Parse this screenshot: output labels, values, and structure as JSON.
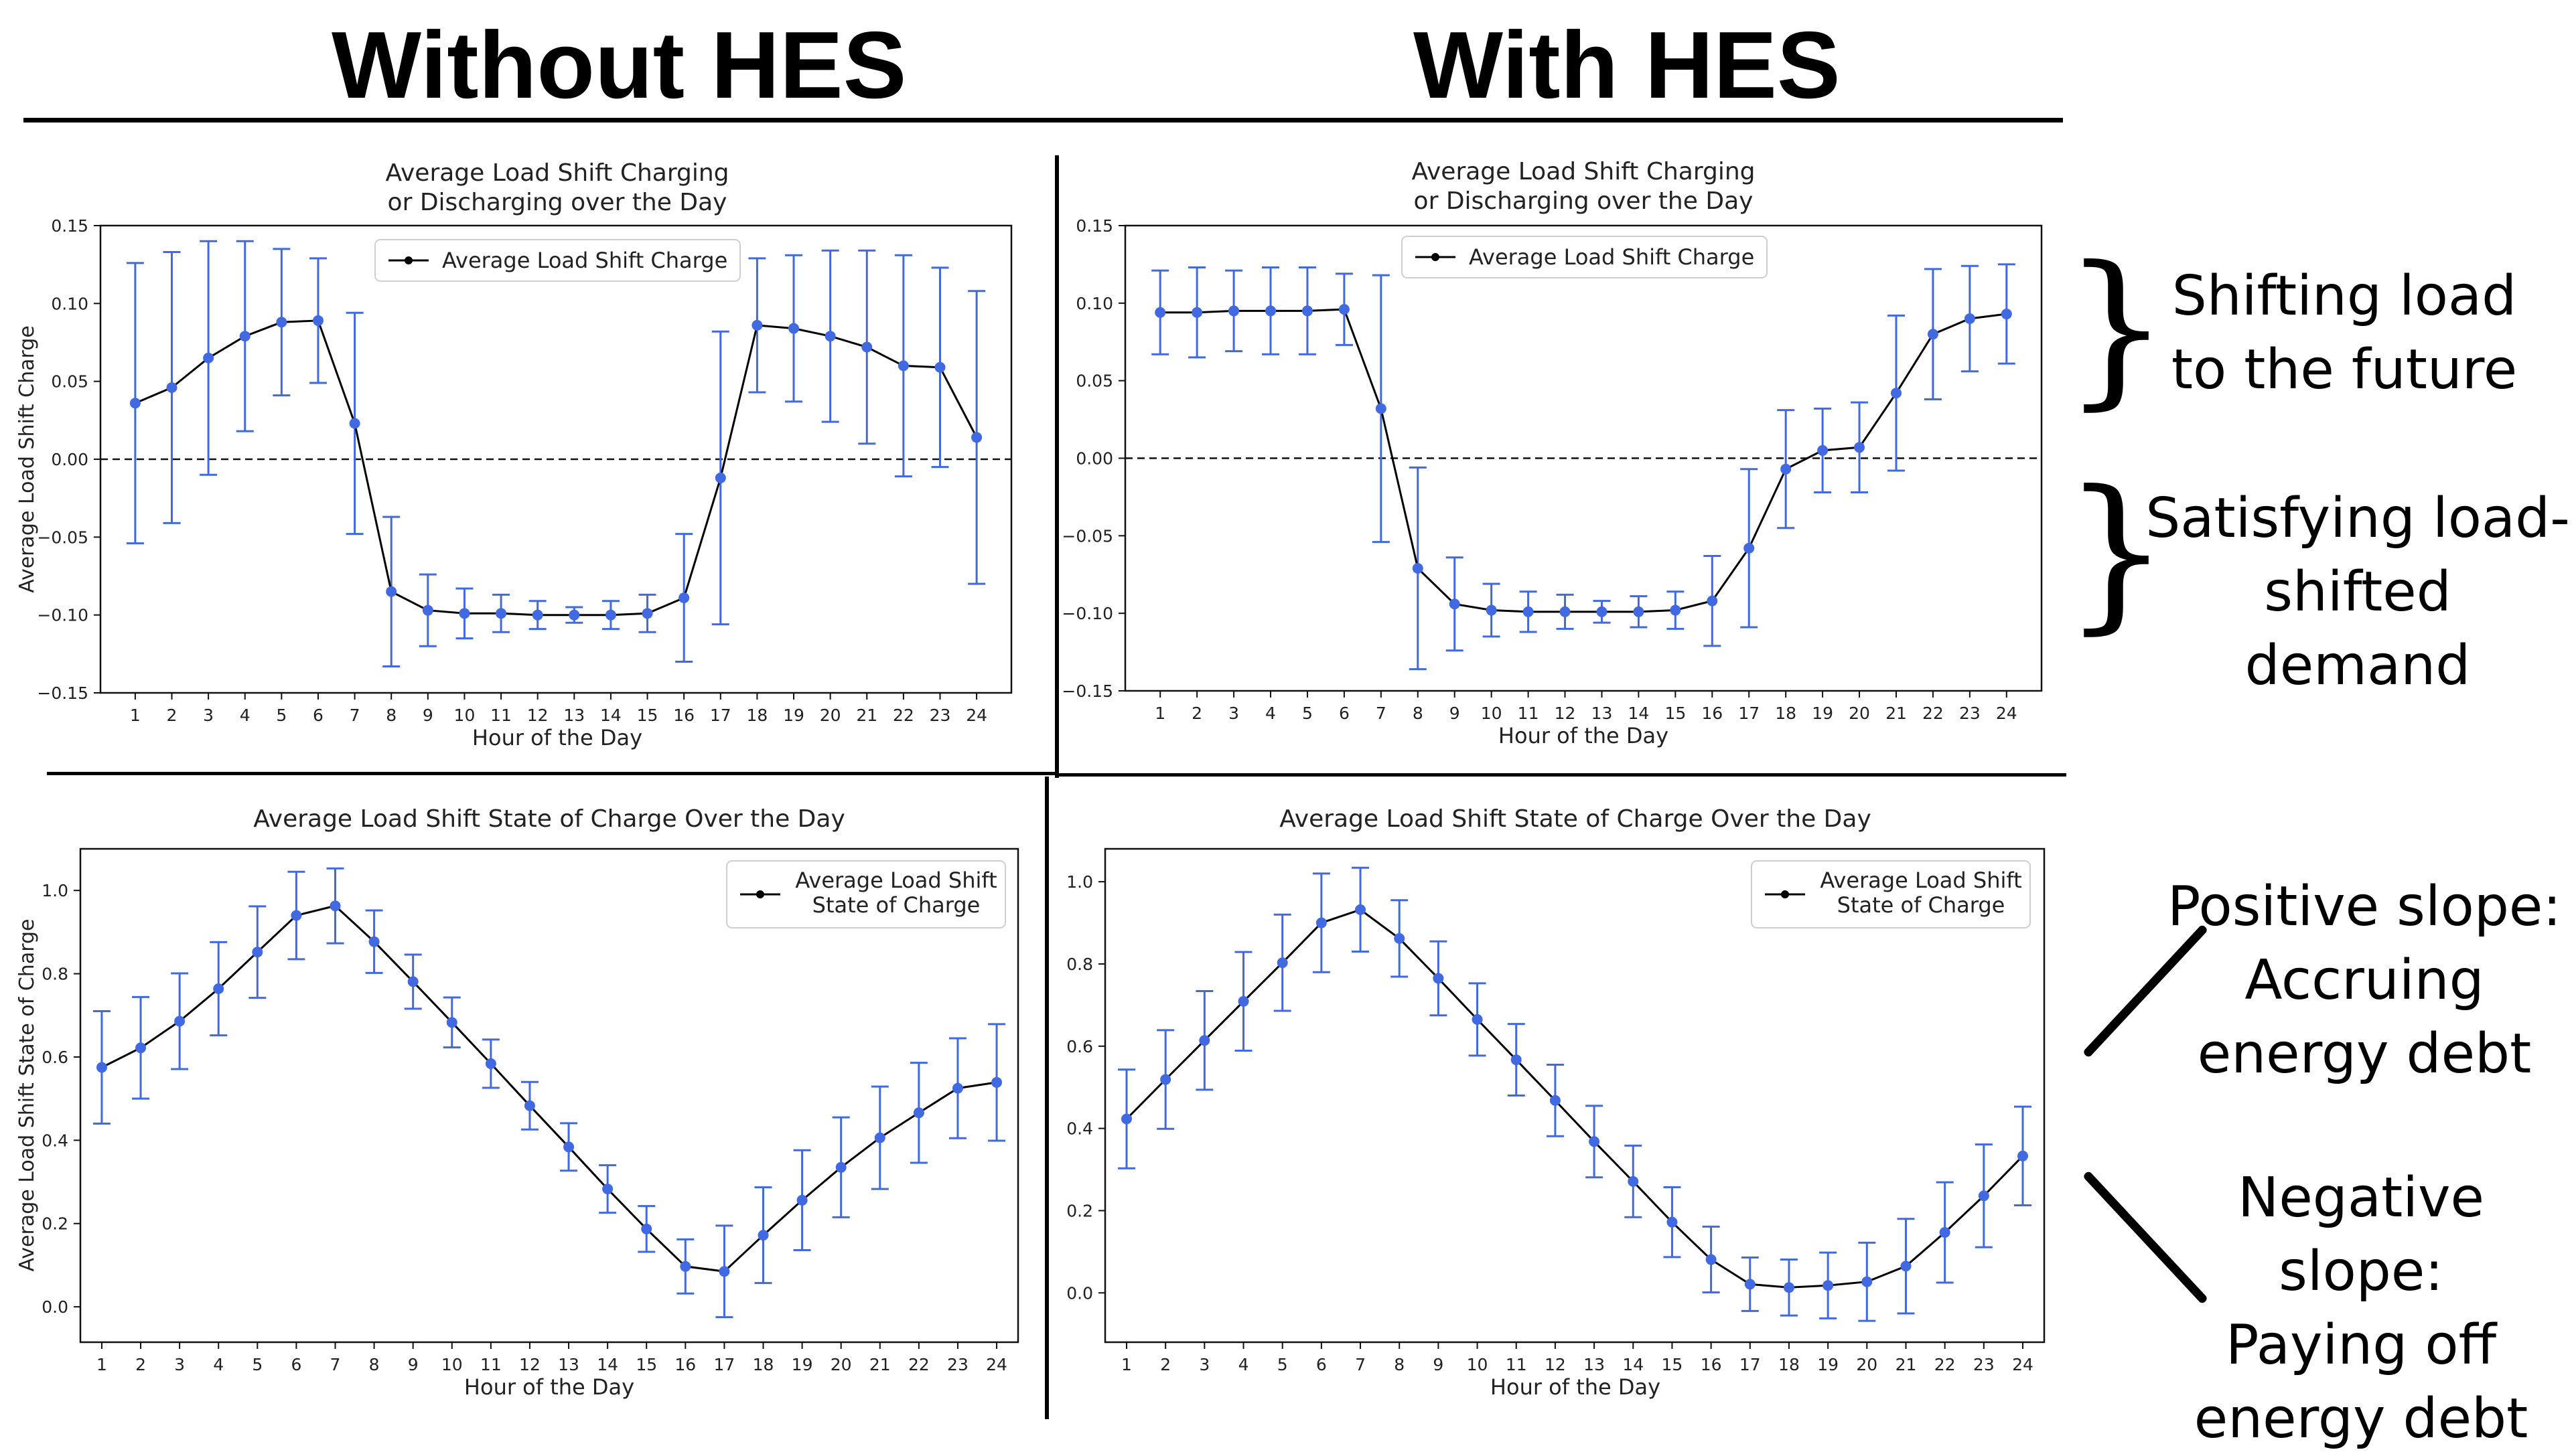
{
  "headings": {
    "left": "Without HES",
    "right": "With HES"
  },
  "annotations": {
    "shift_future_1": "Shifting load",
    "shift_future_2": "to the future",
    "satisfy_1": "Satisfying load-",
    "satisfy_2": "shifted demand",
    "pos_1": "Positive slope:",
    "pos_2": "Accruing",
    "pos_3": "energy debt",
    "neg_1": "Negative slope:",
    "neg_2": "Paying off",
    "neg_3": "energy debt"
  },
  "colors": {
    "series": "#4169e1",
    "line": "#000000"
  },
  "chart_data": [
    {
      "id": "charge-without",
      "type": "line",
      "title": "Average Load Shift Charging\n or Discharging over the Day",
      "xlabel": "Hour of the Day",
      "ylabel": "Average Load Shift Charge",
      "legend": "Average Load Shift Charge",
      "legend_position": "upper-left",
      "ylim": [
        -0.15,
        0.15
      ],
      "yticks": [
        "−0.15",
        "−0.10",
        "−0.05",
        "0.00",
        "0.05",
        "0.10",
        "0.15"
      ],
      "zero_line": true,
      "x": [
        1,
        2,
        3,
        4,
        5,
        6,
        7,
        8,
        9,
        10,
        11,
        12,
        13,
        14,
        15,
        16,
        17,
        18,
        19,
        20,
        21,
        22,
        23,
        24
      ],
      "y": [
        0.036,
        0.046,
        0.065,
        0.079,
        0.088,
        0.089,
        0.023,
        -0.085,
        -0.097,
        -0.099,
        -0.099,
        -0.1,
        -0.1,
        -0.1,
        -0.099,
        -0.089,
        -0.012,
        0.086,
        0.084,
        0.079,
        0.072,
        0.06,
        0.059,
        0.014
      ],
      "err": [
        0.09,
        0.087,
        0.075,
        0.061,
        0.047,
        0.04,
        0.071,
        0.048,
        0.023,
        0.016,
        0.012,
        0.009,
        0.005,
        0.009,
        0.012,
        0.041,
        0.094,
        0.043,
        0.047,
        0.055,
        0.062,
        0.071,
        0.064,
        0.094
      ]
    },
    {
      "id": "charge-with",
      "type": "line",
      "title": "Average Load Shift Charging\n or Discharging over the Day",
      "xlabel": "Hour of the Day",
      "ylabel": "",
      "legend": "Average Load Shift Charge",
      "legend_position": "upper-left",
      "ylim": [
        -0.15,
        0.15
      ],
      "yticks": [
        "−0.15",
        "−0.10",
        "−0.05",
        "0.00",
        "0.05",
        "0.10",
        "0.15"
      ],
      "zero_line": true,
      "x": [
        1,
        2,
        3,
        4,
        5,
        6,
        7,
        8,
        9,
        10,
        11,
        12,
        13,
        14,
        15,
        16,
        17,
        18,
        19,
        20,
        21,
        22,
        23,
        24
      ],
      "y": [
        0.094,
        0.094,
        0.095,
        0.095,
        0.095,
        0.096,
        0.032,
        -0.071,
        -0.094,
        -0.098,
        -0.099,
        -0.099,
        -0.099,
        -0.099,
        -0.098,
        -0.092,
        -0.058,
        -0.007,
        0.005,
        0.007,
        0.042,
        0.08,
        0.09,
        0.093
      ],
      "err": [
        0.027,
        0.029,
        0.026,
        0.028,
        0.028,
        0.023,
        0.086,
        0.065,
        0.03,
        0.017,
        0.013,
        0.011,
        0.007,
        0.01,
        0.012,
        0.029,
        0.051,
        0.038,
        0.027,
        0.029,
        0.05,
        0.042,
        0.034,
        0.032
      ]
    },
    {
      "id": "soc-without",
      "type": "line",
      "title": "Average Load Shift State of Charge Over the Day",
      "xlabel": "Hour of the Day",
      "ylabel": "Average Load Shift State of Charge",
      "legend": "Average Load Shift\nState of Charge",
      "legend_position": "upper-right",
      "ylim": [
        -0.085,
        1.1
      ],
      "yticks": [
        "0.0",
        "0.2",
        "0.4",
        "0.6",
        "0.8",
        "1.0"
      ],
      "zero_line": false,
      "x": [
        1,
        2,
        3,
        4,
        5,
        6,
        7,
        8,
        9,
        10,
        11,
        12,
        13,
        14,
        15,
        16,
        17,
        18,
        19,
        20,
        21,
        22,
        23,
        24
      ],
      "y": [
        0.575,
        0.622,
        0.686,
        0.764,
        0.852,
        0.94,
        0.963,
        0.877,
        0.781,
        0.683,
        0.584,
        0.483,
        0.384,
        0.283,
        0.187,
        0.097,
        0.085,
        0.172,
        0.256,
        0.335,
        0.406,
        0.466,
        0.525,
        0.539
      ],
      "err": [
        0.135,
        0.122,
        0.115,
        0.112,
        0.11,
        0.105,
        0.09,
        0.075,
        0.065,
        0.06,
        0.058,
        0.057,
        0.057,
        0.057,
        0.055,
        0.065,
        0.11,
        0.115,
        0.12,
        0.12,
        0.123,
        0.12,
        0.12,
        0.14
      ]
    },
    {
      "id": "soc-with",
      "type": "line",
      "title": "Average Load Shift State of Charge Over the Day",
      "xlabel": "Hour of the Day",
      "ylabel": "",
      "legend": "Average Load Shift\nState of Charge",
      "legend_position": "upper-right",
      "ylim": [
        -0.12,
        1.08
      ],
      "yticks": [
        "0.0",
        "0.2",
        "0.4",
        "0.6",
        "0.8",
        "1.0"
      ],
      "zero_line": false,
      "x": [
        1,
        2,
        3,
        4,
        5,
        6,
        7,
        8,
        9,
        10,
        11,
        12,
        13,
        14,
        15,
        16,
        17,
        18,
        19,
        20,
        21,
        22,
        23,
        24
      ],
      "y": [
        0.423,
        0.519,
        0.614,
        0.709,
        0.803,
        0.9,
        0.932,
        0.862,
        0.765,
        0.665,
        0.567,
        0.468,
        0.368,
        0.271,
        0.172,
        0.081,
        0.021,
        0.013,
        0.018,
        0.027,
        0.065,
        0.147,
        0.236,
        0.333
      ],
      "err": [
        0.12,
        0.12,
        0.12,
        0.12,
        0.117,
        0.12,
        0.102,
        0.093,
        0.09,
        0.088,
        0.087,
        0.087,
        0.087,
        0.087,
        0.085,
        0.08,
        0.065,
        0.068,
        0.08,
        0.095,
        0.115,
        0.122,
        0.125,
        0.12
      ]
    }
  ]
}
